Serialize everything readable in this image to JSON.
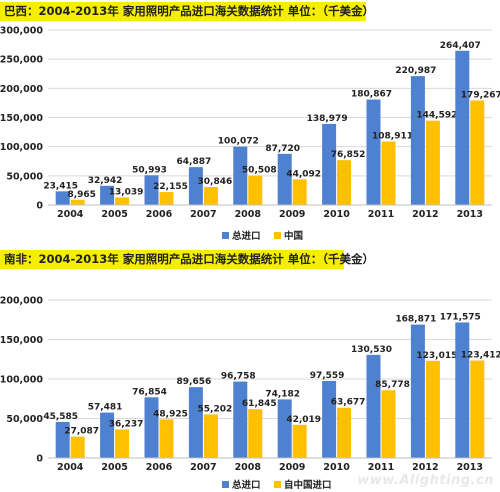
{
  "chart_data": [
    {
      "type": "bar",
      "title": "巴西：2004-2013年 家用照明产品进口海关数据统计  单位：（千美金）",
      "categories": [
        "2004",
        "2005",
        "2006",
        "2007",
        "2008",
        "2009",
        "2010",
        "2011",
        "2012",
        "2013"
      ],
      "series": [
        {
          "name": "总进口",
          "color": "#4f81d1",
          "values": [
            23415,
            32942,
            50993,
            64887,
            100072,
            87720,
            138979,
            180867,
            220987,
            264407
          ],
          "labels": [
            "23,415",
            "32,942",
            "50,993",
            "64,887",
            "100,072",
            "87,720",
            "138,979",
            "180,867",
            "220,987",
            "264,407"
          ]
        },
        {
          "name": "中国",
          "color": "#ffc000",
          "values": [
            8965,
            13039,
            22155,
            30846,
            50508,
            44092,
            76852,
            108911,
            144592,
            179267
          ],
          "labels": [
            "8,965",
            "13,039",
            "22,155",
            "30,846",
            "50,508",
            "44,092",
            "76,852",
            "108,911",
            "144,592",
            "179,267"
          ]
        }
      ],
      "ylim": [
        0,
        300000
      ],
      "yticks": [
        "0",
        "50,000",
        "100,000",
        "150,000",
        "200,000",
        "250,000",
        "300,000"
      ],
      "grid": true,
      "legend": "bottom"
    },
    {
      "type": "bar",
      "title": "南非：2004-2013年 家用照明产品进口海关数据统计  单位：（千美金）",
      "categories": [
        "2004",
        "2005",
        "2006",
        "2007",
        "2008",
        "2009",
        "2010",
        "2011",
        "2012",
        "2013"
      ],
      "series": [
        {
          "name": "总进口",
          "color": "#4f81d1",
          "values": [
            45585,
            57481,
            76854,
            89656,
            96758,
            74182,
            97559,
            130530,
            168871,
            171575
          ],
          "labels": [
            "45,585",
            "57,481",
            "76,854",
            "89,656",
            "96,758",
            "74,182",
            "97,559",
            "130,530",
            "168,871",
            "171,575"
          ]
        },
        {
          "name": "自中国进口",
          "color": "#ffc000",
          "values": [
            27087,
            36237,
            48925,
            55202,
            61845,
            42019,
            63677,
            85778,
            123015,
            123412
          ],
          "labels": [
            "27,087",
            "36,237",
            "48,925",
            "55,202",
            "61,845",
            "42,019",
            "63,677",
            "85,778",
            "123,015",
            "123,412"
          ]
        }
      ],
      "ylim": [
        0,
        200000
      ],
      "yticks": [
        "0",
        "50,000",
        "100,000",
        "150,000",
        "200,000"
      ],
      "grid": true,
      "legend": "bottom"
    }
  ],
  "watermark": "www.Alighting.cn"
}
